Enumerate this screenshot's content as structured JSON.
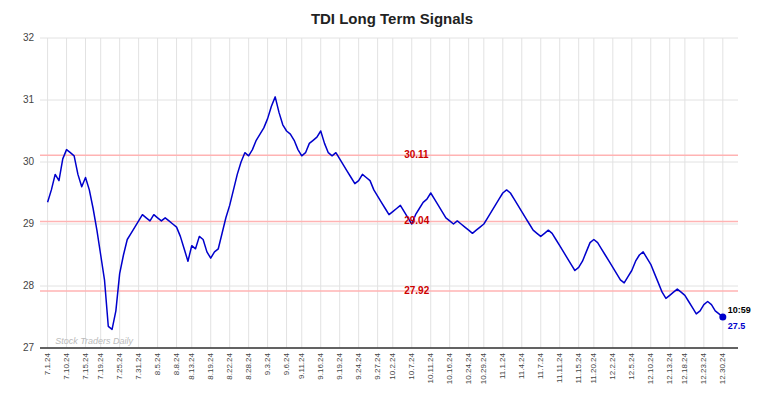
{
  "chart_data": {
    "type": "line",
    "title": "TDI Long Term Signals",
    "categories": [
      "7.1.24",
      null,
      null,
      null,
      null,
      "7.10.24",
      null,
      null,
      null,
      null,
      "7.15.24",
      null,
      null,
      null,
      "7.19.24",
      null,
      null,
      null,
      null,
      "7.25.24",
      null,
      null,
      null,
      null,
      "7.31.24",
      null,
      null,
      null,
      null,
      "8.5.24",
      null,
      null,
      null,
      null,
      "8.8.24",
      null,
      null,
      null,
      "8.13.24",
      null,
      null,
      null,
      null,
      "8.19.24",
      null,
      null,
      null,
      null,
      "8.22.24",
      null,
      null,
      null,
      null,
      "8.28.24",
      null,
      null,
      null,
      null,
      "9.3.24",
      null,
      null,
      null,
      null,
      "9.6.24",
      null,
      null,
      null,
      "9.11.24",
      null,
      null,
      null,
      null,
      "9.16.24",
      null,
      null,
      null,
      null,
      "9.19.24",
      null,
      null,
      null,
      null,
      "9.24.24",
      null,
      null,
      null,
      null,
      "9.27.24",
      null,
      null,
      null,
      "10.2.24",
      null,
      null,
      null,
      null,
      "10.7.24",
      null,
      null,
      null,
      null,
      "10.11.24",
      null,
      null,
      null,
      null,
      "10.16.24",
      null,
      null,
      null,
      null,
      "10.24.24",
      null,
      null,
      null,
      "10.29.24",
      null,
      null,
      null,
      null,
      "11.1.24",
      null,
      null,
      null,
      null,
      "11.4.24",
      null,
      null,
      null,
      null,
      "11.7.24",
      null,
      null,
      null,
      null,
      "11.11.24",
      null,
      null,
      null,
      null,
      "11.15.24",
      null,
      null,
      null,
      "11.20.24",
      null,
      null,
      null,
      null,
      "12.2.24",
      null,
      null,
      null,
      null,
      "12.5.24",
      null,
      null,
      null,
      null,
      "12.10.24",
      null,
      null,
      null,
      null,
      "12.13.24",
      null,
      null,
      null,
      "12.18.24",
      null,
      null,
      null,
      null,
      "12.23.24",
      null,
      null,
      null,
      null,
      "12.30.24"
    ],
    "values": [
      29.35,
      29.55,
      29.8,
      29.7,
      30.05,
      30.2,
      30.15,
      30.1,
      29.8,
      29.6,
      29.75,
      29.55,
      29.25,
      28.9,
      28.5,
      28.1,
      27.35,
      27.3,
      27.6,
      28.2,
      28.5,
      28.75,
      28.85,
      28.95,
      29.05,
      29.15,
      29.1,
      29.05,
      29.15,
      29.1,
      29.05,
      29.1,
      29.05,
      29.0,
      28.95,
      28.8,
      28.6,
      28.4,
      28.65,
      28.6,
      28.8,
      28.75,
      28.55,
      28.45,
      28.55,
      28.6,
      28.85,
      29.1,
      29.3,
      29.55,
      29.8,
      30.0,
      30.15,
      30.1,
      30.2,
      30.35,
      30.45,
      30.55,
      30.7,
      30.9,
      31.05,
      30.8,
      30.6,
      30.5,
      30.45,
      30.35,
      30.2,
      30.1,
      30.15,
      30.3,
      30.35,
      30.4,
      30.5,
      30.3,
      30.15,
      30.1,
      30.15,
      30.05,
      29.95,
      29.85,
      29.75,
      29.65,
      29.7,
      29.8,
      29.75,
      29.7,
      29.55,
      29.45,
      29.35,
      29.25,
      29.15,
      29.2,
      29.25,
      29.3,
      29.2,
      29.1,
      29.0,
      29.15,
      29.25,
      29.35,
      29.4,
      29.5,
      29.4,
      29.3,
      29.2,
      29.1,
      29.05,
      29.0,
      29.05,
      29.0,
      28.95,
      28.9,
      28.85,
      28.9,
      28.95,
      29.0,
      29.1,
      29.2,
      29.3,
      29.4,
      29.5,
      29.55,
      29.5,
      29.4,
      29.3,
      29.2,
      29.1,
      29.0,
      28.9,
      28.85,
      28.8,
      28.85,
      28.9,
      28.85,
      28.75,
      28.65,
      28.55,
      28.45,
      28.35,
      28.25,
      28.3,
      28.4,
      28.55,
      28.7,
      28.75,
      28.7,
      28.6,
      28.5,
      28.4,
      28.3,
      28.2,
      28.1,
      28.05,
      28.15,
      28.25,
      28.4,
      28.5,
      28.55,
      28.45,
      28.35,
      28.2,
      28.05,
      27.9,
      27.8,
      27.85,
      27.9,
      27.95,
      27.9,
      27.85,
      27.75,
      27.65,
      27.55,
      27.6,
      27.7,
      27.75,
      27.7,
      27.6,
      27.55,
      27.5
    ],
    "color": "#0000cc",
    "hlines": [
      {
        "value": 30.11,
        "label": "30.11",
        "color": "#ffb3b3",
        "label_color": "#cc0000"
      },
      {
        "value": 29.04,
        "label": "29.04",
        "color": "#ffb3b3",
        "label_color": "#cc0000"
      },
      {
        "value": 27.92,
        "label": "27.92",
        "color": "#ffb3b3",
        "label_color": "#cc0000"
      }
    ],
    "annotations": [
      {
        "text": "10:59"
      },
      {
        "text": "27.5",
        "value": 27.5,
        "color": "#0000cc"
      },
      {
        "text": "Stock Traders Daily",
        "color": "#bbbbbb"
      }
    ],
    "ylim": [
      27.0,
      32.0
    ],
    "yticks": [
      27,
      28,
      29,
      30,
      31,
      32
    ],
    "grid": true
  }
}
